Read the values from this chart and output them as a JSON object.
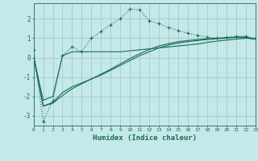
{
  "title": "",
  "xlabel": "Humidex (Indice chaleur)",
  "ylabel": "",
  "background_color": "#c5e8e8",
  "grid_color": "#a0cccc",
  "line_color": "#1a6b5a",
  "xlim": [
    0,
    23
  ],
  "ylim": [
    -3.5,
    2.8
  ],
  "xticks": [
    0,
    1,
    2,
    3,
    4,
    5,
    6,
    7,
    8,
    9,
    10,
    11,
    12,
    13,
    14,
    15,
    16,
    17,
    18,
    19,
    20,
    21,
    22,
    23
  ],
  "yticks": [
    -3,
    -2,
    -1,
    0,
    1,
    2
  ],
  "line1_x": [
    0,
    1,
    2,
    3,
    4,
    5,
    6,
    7,
    8,
    9,
    10,
    11,
    12,
    13,
    14,
    15,
    16,
    17,
    18,
    19,
    20,
    21,
    22,
    23
  ],
  "line1_y": [
    0.4,
    -3.3,
    -2.2,
    0.1,
    0.55,
    0.3,
    1.0,
    1.35,
    1.7,
    2.0,
    2.5,
    2.45,
    1.9,
    1.75,
    1.55,
    1.4,
    1.25,
    1.15,
    1.05,
    1.0,
    1.05,
    1.1,
    1.1,
    1.0
  ],
  "line2_x": [
    0,
    1,
    2,
    3,
    4,
    5,
    6,
    7,
    8,
    9,
    10,
    11,
    12,
    13,
    14,
    15,
    16,
    17,
    18,
    19,
    20,
    21,
    22,
    23
  ],
  "line2_y": [
    0.05,
    -2.2,
    -2.0,
    0.1,
    0.3,
    0.3,
    0.3,
    0.3,
    0.3,
    0.3,
    0.35,
    0.4,
    0.45,
    0.5,
    0.55,
    0.6,
    0.65,
    0.7,
    0.78,
    0.85,
    0.9,
    0.95,
    1.0,
    0.95
  ],
  "line3_x": [
    0,
    1,
    2,
    3,
    4,
    5,
    6,
    7,
    8,
    9,
    10,
    11,
    12,
    13,
    14,
    15,
    16,
    17,
    18,
    19,
    20,
    21,
    22,
    23
  ],
  "line3_y": [
    0.05,
    -2.5,
    -2.3,
    -1.8,
    -1.5,
    -1.3,
    -1.1,
    -0.9,
    -0.65,
    -0.4,
    -0.15,
    0.1,
    0.3,
    0.5,
    0.65,
    0.75,
    0.82,
    0.88,
    0.93,
    0.97,
    1.0,
    1.05,
    1.05,
    0.95
  ],
  "line4_x": [
    0,
    1,
    2,
    3,
    4,
    5,
    6,
    7,
    8,
    9,
    10,
    11,
    12,
    13,
    14,
    15,
    16,
    17,
    18,
    19,
    20,
    21,
    22,
    23
  ],
  "line4_y": [
    0.05,
    -2.5,
    -2.35,
    -1.95,
    -1.6,
    -1.35,
    -1.1,
    -0.85,
    -0.6,
    -0.32,
    -0.05,
    0.2,
    0.42,
    0.6,
    0.72,
    0.82,
    0.88,
    0.93,
    0.97,
    1.0,
    1.02,
    1.05,
    1.05,
    0.95
  ]
}
